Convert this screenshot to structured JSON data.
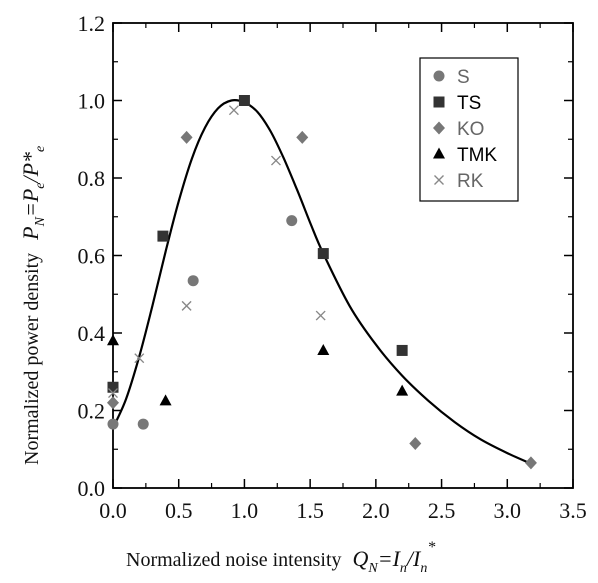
{
  "chart_data": {
    "type": "scatter",
    "xlabel": "Normalized noise intensity",
    "xlabel_math": {
      "main": "Q",
      "sub": "N",
      "eq": "=I",
      "sub2": "n",
      "slash": "/I",
      "sub3": "n",
      "sup": "*"
    },
    "ylabel": "Normalized power  density",
    "ylabel_math": {
      "main": "P",
      "sub": "N",
      "eq": "=P",
      "sub2": "e",
      "slash": "/P*",
      "sub3": "e"
    },
    "xlim": [
      0.0,
      3.5
    ],
    "ylim": [
      0.0,
      1.2
    ],
    "x_ticks": [
      0.0,
      0.5,
      1.0,
      1.5,
      2.0,
      2.5,
      3.0,
      3.5
    ],
    "y_ticks": [
      0.0,
      0.2,
      0.4,
      0.6,
      0.8,
      1.0,
      1.2
    ],
    "x_tick_labels": [
      "0.0",
      "0.5",
      "1.0",
      "1.5",
      "2.0",
      "2.5",
      "3.0",
      "3.5"
    ],
    "y_tick_labels": [
      "0.0",
      "0.2",
      "0.4",
      "0.6",
      "0.8",
      "1.0",
      "1.2"
    ],
    "grid": false,
    "legend_position": "top-right",
    "series": [
      {
        "name": "S",
        "marker": "circle",
        "color": "#777777",
        "points": [
          [
            0.0,
            0.165
          ],
          [
            0.23,
            0.165
          ],
          [
            0.61,
            0.535
          ],
          [
            1.36,
            0.69
          ]
        ]
      },
      {
        "name": "TS",
        "marker": "square",
        "color": "#333333",
        "points": [
          [
            0.0,
            0.26
          ],
          [
            0.38,
            0.65
          ],
          [
            1.0,
            1.0
          ],
          [
            1.6,
            0.605
          ],
          [
            2.2,
            0.355
          ]
        ]
      },
      {
        "name": "KO",
        "marker": "diamond",
        "color": "#777777",
        "points": [
          [
            0.0,
            0.22
          ],
          [
            0.56,
            0.905
          ],
          [
            1.44,
            0.905
          ],
          [
            2.3,
            0.115
          ],
          [
            3.18,
            0.065
          ]
        ]
      },
      {
        "name": "TMK",
        "marker": "triangle",
        "color": "#000000",
        "points": [
          [
            0.0,
            0.38
          ],
          [
            0.4,
            0.225
          ],
          [
            1.6,
            0.355
          ],
          [
            2.2,
            0.25
          ]
        ]
      },
      {
        "name": "RK",
        "marker": "cross",
        "color": "#888888",
        "points": [
          [
            0.0,
            0.245
          ],
          [
            0.2,
            0.335
          ],
          [
            0.56,
            0.47
          ],
          [
            0.92,
            0.975
          ],
          [
            1.24,
            0.845
          ],
          [
            1.58,
            0.445
          ]
        ]
      }
    ],
    "fit_curve": [
      [
        0.0,
        0.155
      ],
      [
        0.1,
        0.23
      ],
      [
        0.2,
        0.34
      ],
      [
        0.3,
        0.47
      ],
      [
        0.4,
        0.61
      ],
      [
        0.5,
        0.74
      ],
      [
        0.6,
        0.85
      ],
      [
        0.7,
        0.93
      ],
      [
        0.8,
        0.98
      ],
      [
        0.9,
        1.0
      ],
      [
        1.0,
        0.995
      ],
      [
        1.1,
        0.97
      ],
      [
        1.2,
        0.92
      ],
      [
        1.3,
        0.85
      ],
      [
        1.4,
        0.77
      ],
      [
        1.5,
        0.685
      ],
      [
        1.6,
        0.605
      ],
      [
        1.8,
        0.47
      ],
      [
        2.0,
        0.37
      ],
      [
        2.2,
        0.29
      ],
      [
        2.4,
        0.225
      ],
      [
        2.6,
        0.17
      ],
      [
        2.8,
        0.125
      ],
      [
        3.0,
        0.09
      ],
      [
        3.2,
        0.06
      ]
    ]
  }
}
